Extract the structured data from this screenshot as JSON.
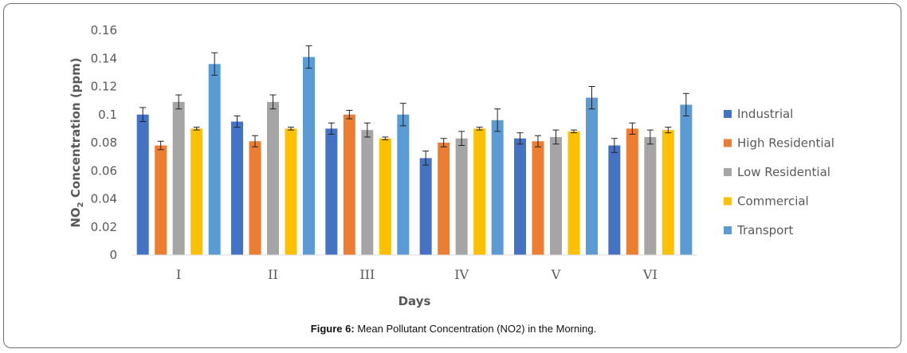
{
  "caption": {
    "label": "Figure 6:",
    "text": " Mean Pollutant Concentration (NO2) in the Morning."
  },
  "chart_data": {
    "type": "bar",
    "title": "",
    "xlabel": "Days",
    "ylabel": {
      "prefix": "NO",
      "subscript": "2",
      "suffix": " Concentration (ppm)"
    },
    "ylim": [
      0,
      0.16
    ],
    "yticks": [
      "0",
      "0.02",
      "0.04",
      "0.06",
      "0.08",
      "0.1",
      "0.12",
      "0.14",
      "0.16"
    ],
    "categories": [
      "I",
      "II",
      "III",
      "IV",
      "V",
      "VI"
    ],
    "grid": false,
    "legend_position": "right",
    "series": [
      {
        "name": "Industrial",
        "color": "#4472c4",
        "values": [
          0.1,
          0.095,
          0.09,
          0.069,
          0.083,
          0.078
        ],
        "errors": [
          0.005,
          0.004,
          0.004,
          0.005,
          0.004,
          0.005
        ]
      },
      {
        "name": "High Residential",
        "color": "#ed7d31",
        "values": [
          0.078,
          0.081,
          0.1,
          0.08,
          0.081,
          0.09
        ],
        "errors": [
          0.003,
          0.004,
          0.003,
          0.003,
          0.004,
          0.004
        ]
      },
      {
        "name": "Low Residential",
        "color": "#a5a5a5",
        "values": [
          0.109,
          0.109,
          0.089,
          0.083,
          0.084,
          0.084
        ],
        "errors": [
          0.005,
          0.005,
          0.005,
          0.005,
          0.005,
          0.005
        ]
      },
      {
        "name": "Commercial",
        "color": "#ffc000",
        "values": [
          0.09,
          0.09,
          0.083,
          0.09,
          0.088,
          0.089
        ],
        "errors": [
          0.001,
          0.001,
          0.001,
          0.001,
          0.001,
          0.002
        ]
      },
      {
        "name": "Transport",
        "color": "#5b9bd5",
        "values": [
          0.136,
          0.141,
          0.1,
          0.096,
          0.112,
          0.107
        ],
        "errors": [
          0.008,
          0.008,
          0.008,
          0.008,
          0.008,
          0.008
        ]
      }
    ]
  }
}
